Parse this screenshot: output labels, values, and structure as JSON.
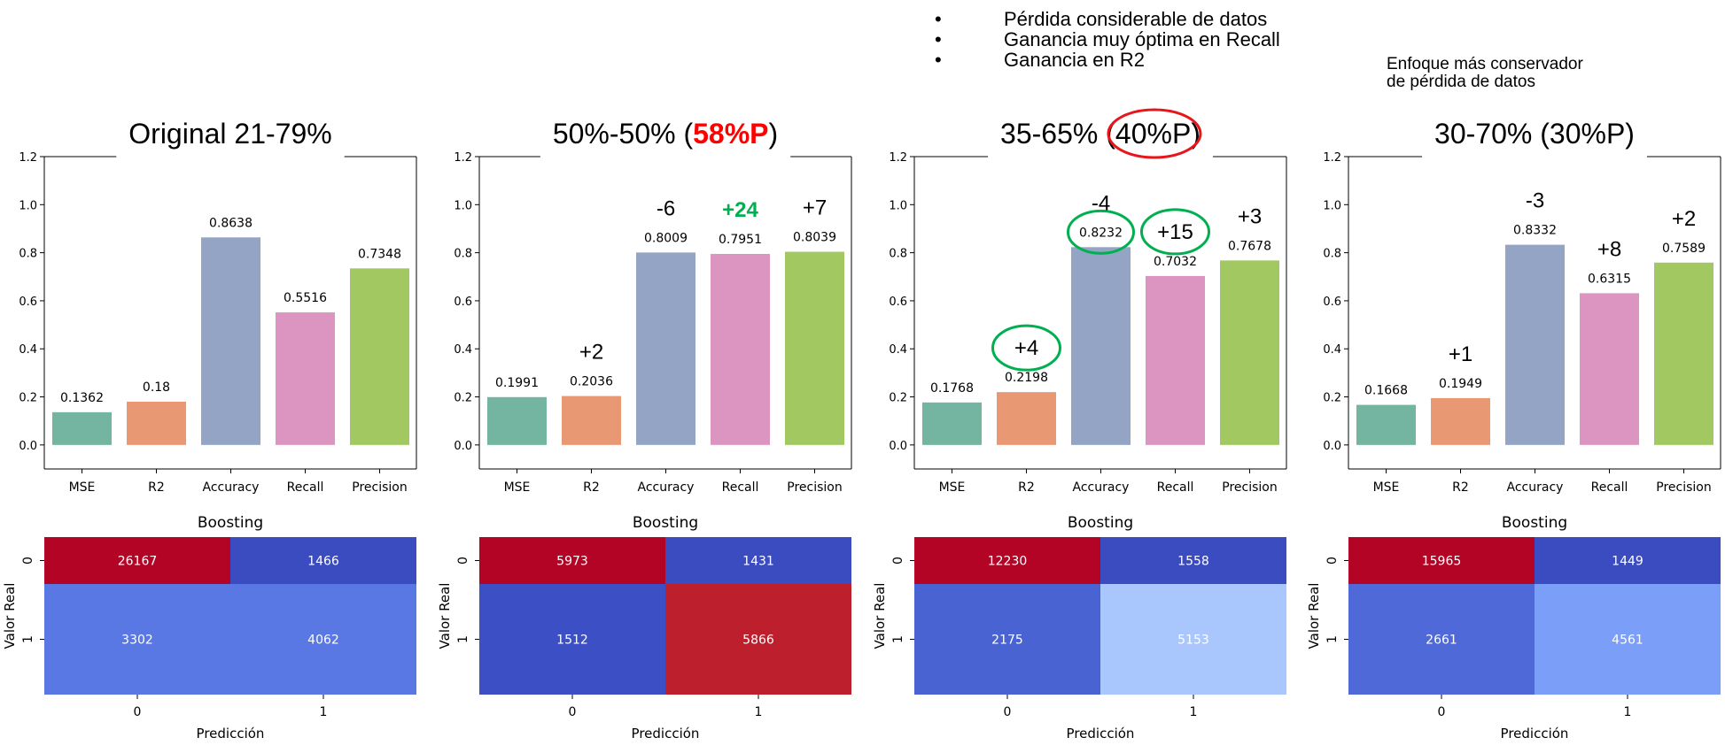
{
  "notes": [
    "Pérdida considerable de datos",
    "Ganancia muy óptima en Recall",
    "Ganancia en R2"
  ],
  "side_note": [
    "Enfoque más conservador",
    "de pérdida de datos"
  ],
  "colors": {
    "bars": [
      "#73b5a0",
      "#e89873",
      "#94a4c4",
      "#dc95c1",
      "#a2c862"
    ],
    "highlight_red": "#ff0000",
    "highlight_green": "#00b050",
    "circle_green": "#00b050",
    "circle_red": "#e8151b"
  },
  "chart_data": [
    {
      "type": "bar",
      "title_parts": [
        {
          "text": "Original 21-79%"
        }
      ],
      "categories": [
        "MSE",
        "R2",
        "Accuracy",
        "Recall",
        "Precision"
      ],
      "values": [
        0.1362,
        0.18,
        0.8638,
        0.5516,
        0.7348
      ],
      "value_labels": [
        "0.1362",
        "0.18",
        "0.8638",
        "0.5516",
        "0.7348"
      ],
      "deltas": [
        "",
        "",
        "",
        "",
        ""
      ],
      "ylim": [
        -0.1,
        1.2
      ],
      "yticks": [
        "0.0",
        "0.2",
        "0.4",
        "0.6",
        "0.8",
        "1.0",
        "1.2"
      ],
      "heatmap": {
        "type": "heatmap",
        "title": "Boosting",
        "xlabel": "Predicción",
        "ylabel": "Valor Real",
        "xticks": [
          "0",
          "1"
        ],
        "yticks": [
          "0",
          "1"
        ],
        "cells": [
          [
            26167,
            1466
          ],
          [
            3302,
            4062
          ]
        ],
        "cell_colors": [
          [
            "#b40426",
            "#3b4cc0"
          ],
          [
            "#5a78e4",
            "#5a78e4"
          ]
        ]
      }
    },
    {
      "type": "bar",
      "title_parts": [
        {
          "text": "50%-50% ("
        },
        {
          "text": "58%P",
          "highlight": "red"
        },
        {
          "text": ")"
        }
      ],
      "categories": [
        "MSE",
        "R2",
        "Accuracy",
        "Recall",
        "Precision"
      ],
      "values": [
        0.1991,
        0.2036,
        0.8009,
        0.7951,
        0.8039
      ],
      "value_labels": [
        "0.1991",
        "0.2036",
        "0.8009",
        "0.7951",
        "0.8039"
      ],
      "deltas": [
        "",
        "+2",
        "-6",
        "+24",
        "+7"
      ],
      "delta_highlight": [
        false,
        false,
        false,
        true,
        false
      ],
      "ylim": [
        -0.1,
        1.2
      ],
      "yticks": [
        "0.0",
        "0.2",
        "0.4",
        "0.6",
        "0.8",
        "1.0",
        "1.2"
      ],
      "heatmap": {
        "type": "heatmap",
        "title": "Boosting",
        "xlabel": "Predicción",
        "ylabel": "Valor Real",
        "xticks": [
          "0",
          "1"
        ],
        "yticks": [
          "0",
          "1"
        ],
        "cells": [
          [
            5973,
            1431
          ],
          [
            1512,
            5866
          ]
        ],
        "cell_colors": [
          [
            "#b40426",
            "#3b4cc0"
          ],
          [
            "#3d4fc4",
            "#bd1f2d"
          ]
        ]
      }
    },
    {
      "type": "bar",
      "title_parts": [
        {
          "text": "35-65% (40%P)"
        }
      ],
      "title_circle": true,
      "categories": [
        "MSE",
        "R2",
        "Accuracy",
        "Recall",
        "Precision"
      ],
      "values": [
        0.1768,
        0.2198,
        0.8232,
        0.7032,
        0.7678
      ],
      "value_labels": [
        "0.1768",
        "0.2198",
        "0.8232",
        "0.7032",
        "0.7678"
      ],
      "deltas": [
        "",
        "+4",
        "-4",
        "+15",
        "+3"
      ],
      "delta_circle": [
        false,
        true,
        false,
        true,
        false
      ],
      "value_circle": [
        false,
        false,
        true,
        false,
        false
      ],
      "ylim": [
        -0.1,
        1.2
      ],
      "yticks": [
        "0.0",
        "0.2",
        "0.4",
        "0.6",
        "0.8",
        "1.0",
        "1.2"
      ],
      "heatmap": {
        "type": "heatmap",
        "title": "Boosting",
        "xlabel": "Predicción",
        "ylabel": "Valor Real",
        "xticks": [
          "0",
          "1"
        ],
        "yticks": [
          "0",
          "1"
        ],
        "cells": [
          [
            12230,
            1558
          ],
          [
            2175,
            5153
          ]
        ],
        "cell_colors": [
          [
            "#b40426",
            "#3b4cc0"
          ],
          [
            "#4a63d3",
            "#aac7fd"
          ]
        ]
      }
    },
    {
      "type": "bar",
      "title_parts": [
        {
          "text": "30-70% (30%P)"
        }
      ],
      "categories": [
        "MSE",
        "R2",
        "Accuracy",
        "Recall",
        "Precision"
      ],
      "values": [
        0.1668,
        0.1949,
        0.8332,
        0.6315,
        0.7589
      ],
      "value_labels": [
        "0.1668",
        "0.1949",
        "0.8332",
        "0.6315",
        "0.7589"
      ],
      "deltas": [
        "",
        "+1",
        "-3",
        "+8",
        "+2"
      ],
      "ylim": [
        -0.1,
        1.2
      ],
      "yticks": [
        "0.0",
        "0.2",
        "0.4",
        "0.6",
        "0.8",
        "1.0",
        "1.2"
      ],
      "heatmap": {
        "type": "heatmap",
        "title": "Boosting",
        "xlabel": "Predicción",
        "ylabel": "Valor Real",
        "xticks": [
          "0",
          "1"
        ],
        "yticks": [
          "0",
          "1"
        ],
        "cells": [
          [
            15965,
            1449
          ],
          [
            2661,
            4561
          ]
        ],
        "cell_colors": [
          [
            "#b40426",
            "#3b4cc0"
          ],
          [
            "#4f69d9",
            "#7b9ff9"
          ]
        ]
      }
    }
  ]
}
